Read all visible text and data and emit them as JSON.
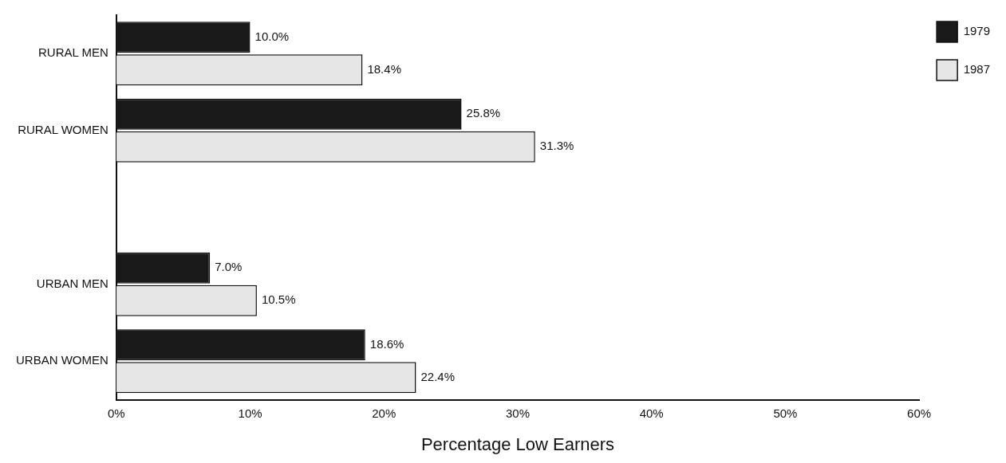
{
  "chart_data": {
    "type": "bar",
    "orientation": "horizontal",
    "xlabel": "Percentage Low Earners",
    "categories": [
      "RURAL MEN",
      "RURAL WOMEN",
      null,
      "URBAN MEN",
      "URBAN WOMEN"
    ],
    "series": [
      {
        "name": "1979",
        "color": "#1a1a1a",
        "values": [
          10.0,
          25.8,
          null,
          7.0,
          18.6
        ],
        "value_labels": [
          "10.0%",
          "25.8%",
          null,
          "7.0%",
          "18.6%"
        ]
      },
      {
        "name": "1987",
        "color": "#e6e6e6",
        "values": [
          18.4,
          31.3,
          null,
          10.5,
          22.4
        ],
        "value_labels": [
          "18.4%",
          "31.3%",
          null,
          "10.5%",
          "22.4%"
        ]
      }
    ],
    "xlim": [
      0,
      60
    ],
    "xticks": [
      {
        "value": 0,
        "label": "0%"
      },
      {
        "value": 10,
        "label": "10%"
      },
      {
        "value": 20,
        "label": "20%"
      },
      {
        "value": 30,
        "label": "30%"
      },
      {
        "value": 40,
        "label": "40%"
      },
      {
        "value": 50,
        "label": "50%"
      },
      {
        "value": 60,
        "label": "60%"
      }
    ],
    "grid": false,
    "legend": "top right"
  }
}
